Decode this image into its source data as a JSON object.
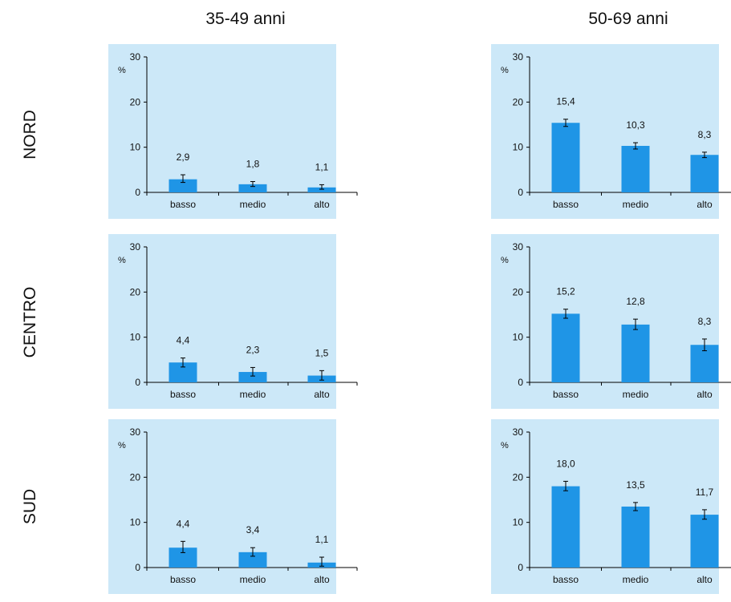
{
  "column_titles": [
    "35-49 anni",
    "50-69 anni"
  ],
  "row_labels": [
    "NORD",
    "CENTRO",
    "SUD"
  ],
  "colors": {
    "panel_bg": "#cce8f8",
    "bar": "#1f95e6",
    "axis": "#000000"
  },
  "chart_data": [
    {
      "type": "bar",
      "row": "NORD",
      "column": "35-49 anni",
      "categories": [
        "basso",
        "medio",
        "alto"
      ],
      "values": [
        2.9,
        1.8,
        1.1
      ],
      "value_labels": [
        "2,9",
        "1,8",
        "1,1"
      ],
      "error_low": [
        2.2,
        1.3,
        0.7
      ],
      "error_high": [
        3.9,
        2.4,
        1.7
      ],
      "ylabel": "%",
      "ylim": [
        0,
        30
      ],
      "yticks": [
        0,
        10,
        20,
        30
      ]
    },
    {
      "type": "bar",
      "row": "NORD",
      "column": "50-69 anni",
      "categories": [
        "basso",
        "medio",
        "alto"
      ],
      "values": [
        15.4,
        10.3,
        8.3
      ],
      "value_labels": [
        "15,4",
        "10,3",
        "8,3"
      ],
      "error_low": [
        14.6,
        9.6,
        7.7
      ],
      "error_high": [
        16.2,
        11.0,
        8.9
      ],
      "ylabel": "%",
      "ylim": [
        0,
        30
      ],
      "yticks": [
        0,
        10,
        20,
        30
      ]
    },
    {
      "type": "bar",
      "row": "CENTRO",
      "column": "35-49 anni",
      "categories": [
        "basso",
        "medio",
        "alto"
      ],
      "values": [
        4.4,
        2.3,
        1.5
      ],
      "value_labels": [
        "4,4",
        "2,3",
        "1,5"
      ],
      "error_low": [
        3.4,
        1.4,
        0.5
      ],
      "error_high": [
        5.4,
        3.3,
        2.6
      ],
      "ylabel": "%",
      "ylim": [
        0,
        30
      ],
      "yticks": [
        0,
        10,
        20,
        30
      ]
    },
    {
      "type": "bar",
      "row": "CENTRO",
      "column": "50-69 anni",
      "categories": [
        "basso",
        "medio",
        "alto"
      ],
      "values": [
        15.2,
        12.8,
        8.3
      ],
      "value_labels": [
        "15,2",
        "12,8",
        "8,3"
      ],
      "error_low": [
        14.2,
        11.7,
        7.0
      ],
      "error_high": [
        16.2,
        14.0,
        9.6
      ],
      "ylabel": "%",
      "ylim": [
        0,
        30
      ],
      "yticks": [
        0,
        10,
        20,
        30
      ]
    },
    {
      "type": "bar",
      "row": "SUD",
      "column": "35-49 anni",
      "categories": [
        "basso",
        "medio",
        "alto"
      ],
      "values": [
        4.4,
        3.4,
        1.1
      ],
      "value_labels": [
        "4,4",
        "3,4",
        "1,1"
      ],
      "error_low": [
        3.3,
        2.5,
        0.3
      ],
      "error_high": [
        5.8,
        4.4,
        2.3
      ],
      "ylabel": "%",
      "ylim": [
        0,
        30
      ],
      "yticks": [
        0,
        10,
        20,
        30
      ]
    },
    {
      "type": "bar",
      "row": "SUD",
      "column": "50-69 anni",
      "categories": [
        "basso",
        "medio",
        "alto"
      ],
      "values": [
        18.0,
        13.5,
        11.7
      ],
      "value_labels": [
        "18,0",
        "13,5",
        "11,7"
      ],
      "error_low": [
        17.0,
        12.6,
        10.7
      ],
      "error_high": [
        19.1,
        14.4,
        12.8
      ],
      "ylabel": "%",
      "ylim": [
        0,
        30
      ],
      "yticks": [
        0,
        10,
        20,
        30
      ]
    }
  ]
}
